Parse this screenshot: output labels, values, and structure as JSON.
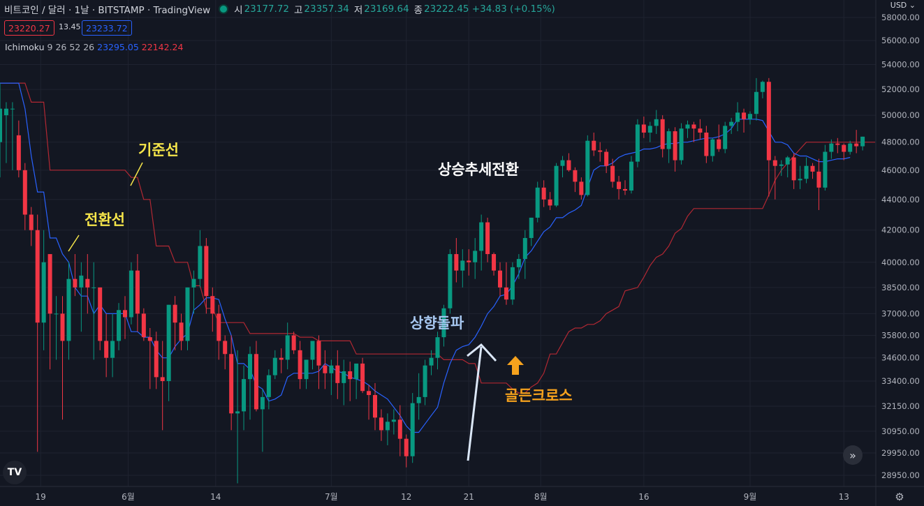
{
  "header": {
    "symbol": "비트코인 / 달러 · 1날 · BITSTAMP · TradingView",
    "ohlc": [
      {
        "k": "시",
        "v": "23177.72"
      },
      {
        "k": "고",
        "v": "23357.34"
      },
      {
        "k": "저",
        "v": "23169.64"
      },
      {
        "k": "종",
        "v": "23222.45 +34.83 (+0.15%)"
      }
    ]
  },
  "bid_price": "23220.27",
  "spread": "13.45",
  "ask_price": "23233.72",
  "indicator": {
    "name": "Ichimoku",
    "params": "9 26 52 26",
    "conversion_value": "23295.05",
    "base_value": "22142.24"
  },
  "currency": "USD",
  "annotations": {
    "base_line_label": "기준선",
    "conversion_line_label": "전환선",
    "trend_reversal": "상승추세전환",
    "upward_breakout": "상향돌파",
    "golden_cross": "골든크로스"
  },
  "logo_text": "TV",
  "icons": {
    "scroll": "double-chevron-right-icon",
    "settings": "gear-icon",
    "up_arrow": "up-arrow-icon"
  },
  "colors": {
    "up": "#089981",
    "down": "#f23645",
    "conversion": "#2962ff",
    "base": "#b22833",
    "grid": "#1f2330"
  },
  "chart_data": {
    "type": "candlestick",
    "y_axis_ticks": [
      28950,
      29950,
      30950,
      32150,
      33400,
      34600,
      35800,
      37000,
      38500,
      40000,
      42000,
      44000,
      46000,
      48000,
      50000,
      52000,
      54000,
      56000,
      58000
    ],
    "y_axis_scale": "log",
    "x_axis_labels": [
      "19",
      "6월",
      "14",
      "7월",
      "12",
      "21",
      "8월",
      "16",
      "9월",
      "13"
    ],
    "candles": [
      {
        "o": 48000,
        "h": 52500,
        "l": 45500,
        "c": 50500
      },
      {
        "o": 50000,
        "h": 51000,
        "l": 46500,
        "c": 50500
      },
      {
        "o": 50500,
        "h": 51000,
        "l": 46000,
        "c": 50500
      },
      {
        "o": 48500,
        "h": 49600,
        "l": 45500,
        "c": 46000
      },
      {
        "o": 46000,
        "h": 46500,
        "l": 42000,
        "c": 43000
      },
      {
        "o": 43000,
        "h": 43500,
        "l": 41000,
        "c": 42000
      },
      {
        "o": 42000,
        "h": 43000,
        "l": 30000,
        "c": 36500
      },
      {
        "o": 36500,
        "h": 42000,
        "l": 35000,
        "c": 40000
      },
      {
        "o": 40500,
        "h": 40500,
        "l": 34000,
        "c": 37000
      },
      {
        "o": 37000,
        "h": 38000,
        "l": 34500,
        "c": 37000
      },
      {
        "o": 37000,
        "h": 38000,
        "l": 31500,
        "c": 35500
      },
      {
        "o": 35500,
        "h": 40000,
        "l": 34500,
        "c": 39000
      },
      {
        "o": 39000,
        "h": 40500,
        "l": 38000,
        "c": 38500
      },
      {
        "o": 38500,
        "h": 40000,
        "l": 36000,
        "c": 39200
      },
      {
        "o": 39000,
        "h": 40500,
        "l": 37000,
        "c": 38500
      },
      {
        "o": 38500,
        "h": 40000,
        "l": 34500,
        "c": 38500
      },
      {
        "o": 38500,
        "h": 38500,
        "l": 35000,
        "c": 35500
      },
      {
        "o": 35500,
        "h": 37000,
        "l": 33600,
        "c": 34600
      },
      {
        "o": 34600,
        "h": 37000,
        "l": 33600,
        "c": 35500
      },
      {
        "o": 35500,
        "h": 37600,
        "l": 35000,
        "c": 37200
      },
      {
        "o": 37200,
        "h": 38000,
        "l": 35600,
        "c": 36800
      },
      {
        "o": 36800,
        "h": 40000,
        "l": 36400,
        "c": 39500
      },
      {
        "o": 39500,
        "h": 40500,
        "l": 36000,
        "c": 37000
      },
      {
        "o": 37000,
        "h": 37300,
        "l": 35500,
        "c": 35700
      },
      {
        "o": 35700,
        "h": 36200,
        "l": 33000,
        "c": 35500
      },
      {
        "o": 35500,
        "h": 36000,
        "l": 33000,
        "c": 33600
      },
      {
        "o": 33600,
        "h": 35500,
        "l": 31000,
        "c": 33400
      },
      {
        "o": 33400,
        "h": 37500,
        "l": 32400,
        "c": 37500
      },
      {
        "o": 37500,
        "h": 38000,
        "l": 35000,
        "c": 36500
      },
      {
        "o": 36500,
        "h": 37000,
        "l": 35000,
        "c": 35500
      },
      {
        "o": 35500,
        "h": 38500,
        "l": 35000,
        "c": 38500
      },
      {
        "o": 38500,
        "h": 39500,
        "l": 37000,
        "c": 39000
      },
      {
        "o": 39000,
        "h": 42000,
        "l": 38500,
        "c": 41000
      },
      {
        "o": 41000,
        "h": 41500,
        "l": 37000,
        "c": 38000
      },
      {
        "o": 38000,
        "h": 38500,
        "l": 36000,
        "c": 37000
      },
      {
        "o": 37000,
        "h": 37500,
        "l": 34500,
        "c": 35500
      },
      {
        "o": 35500,
        "h": 35800,
        "l": 34000,
        "c": 34800
      },
      {
        "o": 34800,
        "h": 35800,
        "l": 31000,
        "c": 31800
      },
      {
        "o": 31800,
        "h": 35000,
        "l": 28600,
        "c": 31900
      },
      {
        "o": 31900,
        "h": 34200,
        "l": 31000,
        "c": 33500
      },
      {
        "o": 33500,
        "h": 35200,
        "l": 31500,
        "c": 34800
      },
      {
        "o": 34800,
        "h": 35500,
        "l": 31900,
        "c": 32000
      },
      {
        "o": 32000,
        "h": 33000,
        "l": 30000,
        "c": 32600
      },
      {
        "o": 32600,
        "h": 34000,
        "l": 32000,
        "c": 33700
      },
      {
        "o": 33700,
        "h": 35000,
        "l": 33500,
        "c": 34600
      },
      {
        "o": 34600,
        "h": 35100,
        "l": 33800,
        "c": 34500
      },
      {
        "o": 34500,
        "h": 36500,
        "l": 34000,
        "c": 35800
      },
      {
        "o": 35800,
        "h": 36000,
        "l": 34800,
        "c": 35000
      },
      {
        "o": 35000,
        "h": 35500,
        "l": 33000,
        "c": 33500
      },
      {
        "o": 33500,
        "h": 34500,
        "l": 33000,
        "c": 34500
      },
      {
        "o": 34500,
        "h": 35500,
        "l": 34000,
        "c": 35500
      },
      {
        "o": 35500,
        "h": 35800,
        "l": 33000,
        "c": 34200
      },
      {
        "o": 34200,
        "h": 35000,
        "l": 33000,
        "c": 33800
      },
      {
        "o": 33800,
        "h": 34500,
        "l": 32700,
        "c": 34200
      },
      {
        "o": 34200,
        "h": 35000,
        "l": 32500,
        "c": 33300
      },
      {
        "o": 33300,
        "h": 34500,
        "l": 32200,
        "c": 33900
      },
      {
        "o": 33900,
        "h": 34400,
        "l": 32400,
        "c": 33500
      },
      {
        "o": 33500,
        "h": 34200,
        "l": 32500,
        "c": 34300
      },
      {
        "o": 34300,
        "h": 34600,
        "l": 32800,
        "c": 32900
      },
      {
        "o": 32900,
        "h": 33200,
        "l": 31500,
        "c": 32700
      },
      {
        "o": 32700,
        "h": 33300,
        "l": 31000,
        "c": 31600
      },
      {
        "o": 31600,
        "h": 32000,
        "l": 30500,
        "c": 31000
      },
      {
        "o": 31000,
        "h": 31800,
        "l": 30300,
        "c": 31400
      },
      {
        "o": 31400,
        "h": 32000,
        "l": 30800,
        "c": 31500
      },
      {
        "o": 31500,
        "h": 32200,
        "l": 29800,
        "c": 30600
      },
      {
        "o": 30600,
        "h": 30800,
        "l": 29300,
        "c": 29800
      },
      {
        "o": 29800,
        "h": 32800,
        "l": 29500,
        "c": 32300
      },
      {
        "o": 32300,
        "h": 33800,
        "l": 31500,
        "c": 32600
      },
      {
        "o": 32600,
        "h": 34500,
        "l": 32200,
        "c": 34200
      },
      {
        "o": 34200,
        "h": 35000,
        "l": 33700,
        "c": 34600
      },
      {
        "o": 34600,
        "h": 36000,
        "l": 34000,
        "c": 35700
      },
      {
        "o": 35700,
        "h": 37500,
        "l": 35200,
        "c": 37300
      },
      {
        "o": 37300,
        "h": 40800,
        "l": 37000,
        "c": 40500
      },
      {
        "o": 40500,
        "h": 41500,
        "l": 38800,
        "c": 39500
      },
      {
        "o": 39500,
        "h": 40800,
        "l": 38500,
        "c": 40100
      },
      {
        "o": 40100,
        "h": 40800,
        "l": 39200,
        "c": 40000
      },
      {
        "o": 40000,
        "h": 41500,
        "l": 39000,
        "c": 40700
      },
      {
        "o": 40700,
        "h": 43000,
        "l": 39500,
        "c": 42500
      },
      {
        "o": 42500,
        "h": 42800,
        "l": 40000,
        "c": 40500
      },
      {
        "o": 40500,
        "h": 40600,
        "l": 39200,
        "c": 39500
      },
      {
        "o": 39500,
        "h": 40000,
        "l": 38000,
        "c": 38500
      },
      {
        "o": 38500,
        "h": 40000,
        "l": 37500,
        "c": 37800
      },
      {
        "o": 37800,
        "h": 40000,
        "l": 37500,
        "c": 39700
      },
      {
        "o": 39700,
        "h": 40500,
        "l": 39000,
        "c": 40200
      },
      {
        "o": 40200,
        "h": 42000,
        "l": 39000,
        "c": 41500
      },
      {
        "o": 41500,
        "h": 42800,
        "l": 41000,
        "c": 42800
      },
      {
        "o": 42800,
        "h": 45200,
        "l": 42500,
        "c": 44800
      },
      {
        "o": 44800,
        "h": 45300,
        "l": 43500,
        "c": 44000
      },
      {
        "o": 44000,
        "h": 44500,
        "l": 43300,
        "c": 43600
      },
      {
        "o": 43600,
        "h": 46500,
        "l": 43500,
        "c": 46300
      },
      {
        "o": 46300,
        "h": 47000,
        "l": 45500,
        "c": 46700
      },
      {
        "o": 46700,
        "h": 47200,
        "l": 45900,
        "c": 46000
      },
      {
        "o": 46000,
        "h": 46200,
        "l": 44500,
        "c": 45200
      },
      {
        "o": 45200,
        "h": 45500,
        "l": 44000,
        "c": 44300
      },
      {
        "o": 44300,
        "h": 48500,
        "l": 44200,
        "c": 48100
      },
      {
        "o": 48100,
        "h": 48700,
        "l": 47000,
        "c": 47400
      },
      {
        "o": 47400,
        "h": 48000,
        "l": 46600,
        "c": 47300
      },
      {
        "o": 47300,
        "h": 47500,
        "l": 45800,
        "c": 46300
      },
      {
        "o": 46300,
        "h": 46800,
        "l": 44800,
        "c": 45200
      },
      {
        "o": 45200,
        "h": 45600,
        "l": 44000,
        "c": 44700
      },
      {
        "o": 44700,
        "h": 45300,
        "l": 44300,
        "c": 44600
      },
      {
        "o": 44600,
        "h": 47000,
        "l": 44400,
        "c": 46600
      },
      {
        "o": 46600,
        "h": 49700,
        "l": 46200,
        "c": 49300
      },
      {
        "o": 49300,
        "h": 49900,
        "l": 48300,
        "c": 48700
      },
      {
        "o": 48700,
        "h": 49500,
        "l": 48000,
        "c": 49200
      },
      {
        "o": 49200,
        "h": 50400,
        "l": 48600,
        "c": 49700
      },
      {
        "o": 49700,
        "h": 50000,
        "l": 46900,
        "c": 47500
      },
      {
        "o": 47500,
        "h": 49000,
        "l": 46500,
        "c": 48800
      },
      {
        "o": 48800,
        "h": 49100,
        "l": 45900,
        "c": 46700
      },
      {
        "o": 46700,
        "h": 49400,
        "l": 46400,
        "c": 49000
      },
      {
        "o": 49000,
        "h": 49600,
        "l": 48300,
        "c": 49300
      },
      {
        "o": 49300,
        "h": 49500,
        "l": 48000,
        "c": 49000
      },
      {
        "o": 49000,
        "h": 49700,
        "l": 48200,
        "c": 48700
      },
      {
        "o": 48700,
        "h": 49200,
        "l": 46500,
        "c": 47000
      },
      {
        "o": 47000,
        "h": 48300,
        "l": 46600,
        "c": 48200
      },
      {
        "o": 48200,
        "h": 49300,
        "l": 47300,
        "c": 47500
      },
      {
        "o": 47500,
        "h": 49500,
        "l": 47200,
        "c": 49200
      },
      {
        "o": 49200,
        "h": 49800,
        "l": 48600,
        "c": 49500
      },
      {
        "o": 49500,
        "h": 51000,
        "l": 48800,
        "c": 50200
      },
      {
        "o": 50200,
        "h": 50500,
        "l": 48700,
        "c": 49700
      },
      {
        "o": 49700,
        "h": 50300,
        "l": 49300,
        "c": 50100
      },
      {
        "o": 50100,
        "h": 52900,
        "l": 49600,
        "c": 51800
      },
      {
        "o": 51800,
        "h": 52700,
        "l": 51300,
        "c": 52600
      },
      {
        "o": 52600,
        "h": 52900,
        "l": 44200,
        "c": 46700
      },
      {
        "o": 46700,
        "h": 47000,
        "l": 44000,
        "c": 46300
      },
      {
        "o": 46300,
        "h": 46700,
        "l": 45600,
        "c": 46400
      },
      {
        "o": 46400,
        "h": 47000,
        "l": 45500,
        "c": 46900
      },
      {
        "o": 46900,
        "h": 47200,
        "l": 44700,
        "c": 45300
      },
      {
        "o": 45300,
        "h": 46300,
        "l": 44700,
        "c": 45400
      },
      {
        "o": 45400,
        "h": 46900,
        "l": 45100,
        "c": 46300
      },
      {
        "o": 46300,
        "h": 46500,
        "l": 45400,
        "c": 45900
      },
      {
        "o": 45900,
        "h": 46800,
        "l": 43300,
        "c": 44800
      },
      {
        "o": 44800,
        "h": 47800,
        "l": 44600,
        "c": 47300
      },
      {
        "o": 47300,
        "h": 48200,
        "l": 46800,
        "c": 47900
      },
      {
        "o": 47900,
        "h": 48300,
        "l": 47200,
        "c": 47800
      },
      {
        "o": 47800,
        "h": 47900,
        "l": 46700,
        "c": 47300
      },
      {
        "o": 47300,
        "h": 48100,
        "l": 47100,
        "c": 47900
      },
      {
        "o": 47900,
        "h": 48900,
        "l": 47200,
        "c": 47700
      },
      {
        "o": 47700,
        "h": 48400,
        "l": 47400,
        "c": 48400
      }
    ],
    "conversion_line": [
      52500,
      52500,
      52500,
      52500,
      50500,
      47000,
      44500,
      44500,
      41500,
      41500,
      40500,
      40000,
      38500,
      38000,
      38000,
      37000,
      37500,
      37000,
      37000,
      37000,
      37000,
      36000,
      36000,
      35700,
      35700,
      35000,
      34600,
      34600,
      35200,
      35600,
      35900,
      37200,
      37500,
      37900,
      37900,
      37800,
      36700,
      35800,
      34300,
      34300,
      34000,
      33200,
      33000,
      32400,
      32500,
      32700,
      33600,
      33800,
      33800,
      33800,
      33800,
      33900,
      34300,
      34100,
      33900,
      33800,
      33600,
      33500,
      33400,
      33200,
      32900,
      32700,
      32500,
      32100,
      31700,
      31200,
      30900,
      30900,
      31300,
      31700,
      32100,
      33300,
      34300,
      35000,
      35200,
      35300,
      35700,
      36300,
      37000,
      37400,
      38000,
      38100,
      38600,
      39300,
      40300,
      40700,
      41300,
      41900,
      42200,
      42800,
      42800,
      43100,
      43300,
      43600,
      44800,
      46000,
      46300,
      46300,
      46500,
      46900,
      47100,
      47200,
      47300,
      47500,
      47500,
      47600,
      47800,
      47900,
      47900,
      48000,
      48000,
      48100,
      48200,
      48300,
      48300,
      48400,
      48600,
      49000,
      49700,
      49700,
      49700,
      49700,
      49600,
      48800,
      48000,
      48000,
      47800,
      47200,
      47000,
      47000,
      46800,
      46600,
      46600,
      46700,
      46800,
      46800,
      46900
    ],
    "base_line": [
      52500,
      52500,
      52500,
      52500,
      52500,
      51000,
      51000,
      51000,
      46000,
      46000,
      46000,
      46000,
      46000,
      46000,
      46000,
      46000,
      46000,
      46000,
      46000,
      46000,
      46000,
      45500,
      45500,
      44000,
      44000,
      41000,
      41000,
      41000,
      40000,
      40000,
      40000,
      38600,
      38600,
      37300,
      37300,
      36500,
      36500,
      36500,
      36500,
      36500,
      35900,
      35900,
      35900,
      35900,
      35900,
      35900,
      35900,
      35900,
      35700,
      35700,
      35700,
      35500,
      35500,
      35500,
      35500,
      35500,
      35500,
      34800,
      34800,
      34800,
      34800,
      34800,
      34800,
      34800,
      34800,
      34800,
      34800,
      34800,
      34800,
      34800,
      34800,
      34500,
      34500,
      34500,
      34500,
      34300,
      34300,
      33300,
      33300,
      33300,
      33300,
      33300,
      33000,
      32800,
      32800,
      33100,
      33300,
      33800,
      34800,
      34800,
      35400,
      36000,
      36200,
      36200,
      36400,
      36400,
      36600,
      37000,
      37200,
      37400,
      38300,
      38400,
      38500,
      39100,
      39800,
      40300,
      40500,
      41000,
      41800,
      42100,
      42900,
      43400,
      43400,
      43400,
      43400,
      43400,
      43400,
      43400,
      43400,
      43400,
      43400,
      43400,
      43400,
      44300,
      45300,
      46000,
      46500,
      47000,
      47500,
      48000,
      48000,
      48000,
      48000,
      48000,
      48000,
      48000,
      48000,
      48000,
      48000,
      48000,
      48000
    ]
  }
}
